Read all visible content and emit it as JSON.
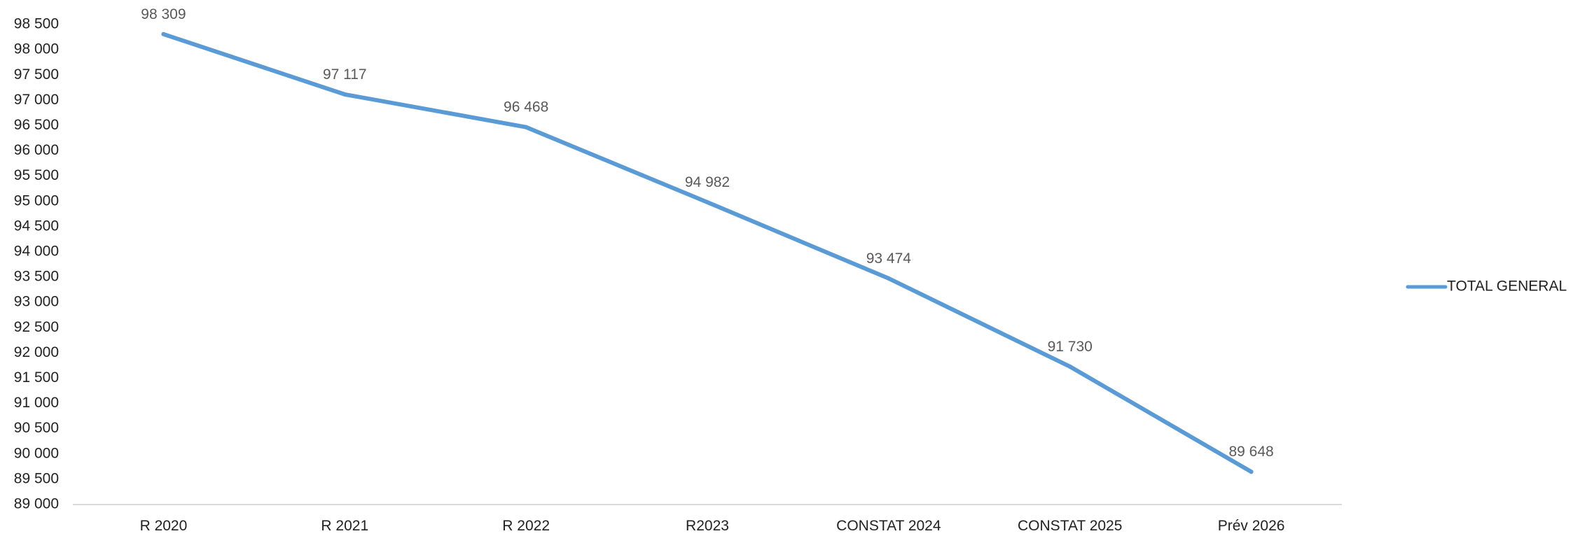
{
  "chart_data": {
    "type": "line",
    "title": "",
    "xlabel": "",
    "ylabel": "",
    "categories": [
      "R 2020",
      "R 2021",
      "R 2022",
      "R2023",
      "CONSTAT 2024",
      "CONSTAT 2025",
      "Prév 2026"
    ],
    "series": [
      {
        "name": "TOTAL GENERAL",
        "values": [
          98309,
          97117,
          96468,
          94982,
          93474,
          91730,
          89648
        ],
        "value_labels": [
          "98 309",
          "97 117",
          "96 468",
          "94 982",
          "93 474",
          "91 730",
          "89 648"
        ],
        "color": "#5b9bd5"
      }
    ],
    "ylim": [
      89000,
      98500
    ],
    "y_ticks": [
      89000,
      89500,
      90000,
      90500,
      91000,
      91500,
      92000,
      92500,
      93000,
      93500,
      94000,
      94500,
      95000,
      95500,
      96000,
      96500,
      97000,
      97500,
      98000,
      98500
    ],
    "y_tick_labels": [
      "89 000",
      "89 500",
      "90 000",
      "90 500",
      "91 000",
      "91 500",
      "92 000",
      "92 500",
      "93 000",
      "93 500",
      "94 000",
      "94 500",
      "95 000",
      "95 500",
      "96 000",
      "96 500",
      "97 000",
      "97 500",
      "98 000",
      "98 500"
    ],
    "grid": false,
    "legend_position": "right"
  }
}
